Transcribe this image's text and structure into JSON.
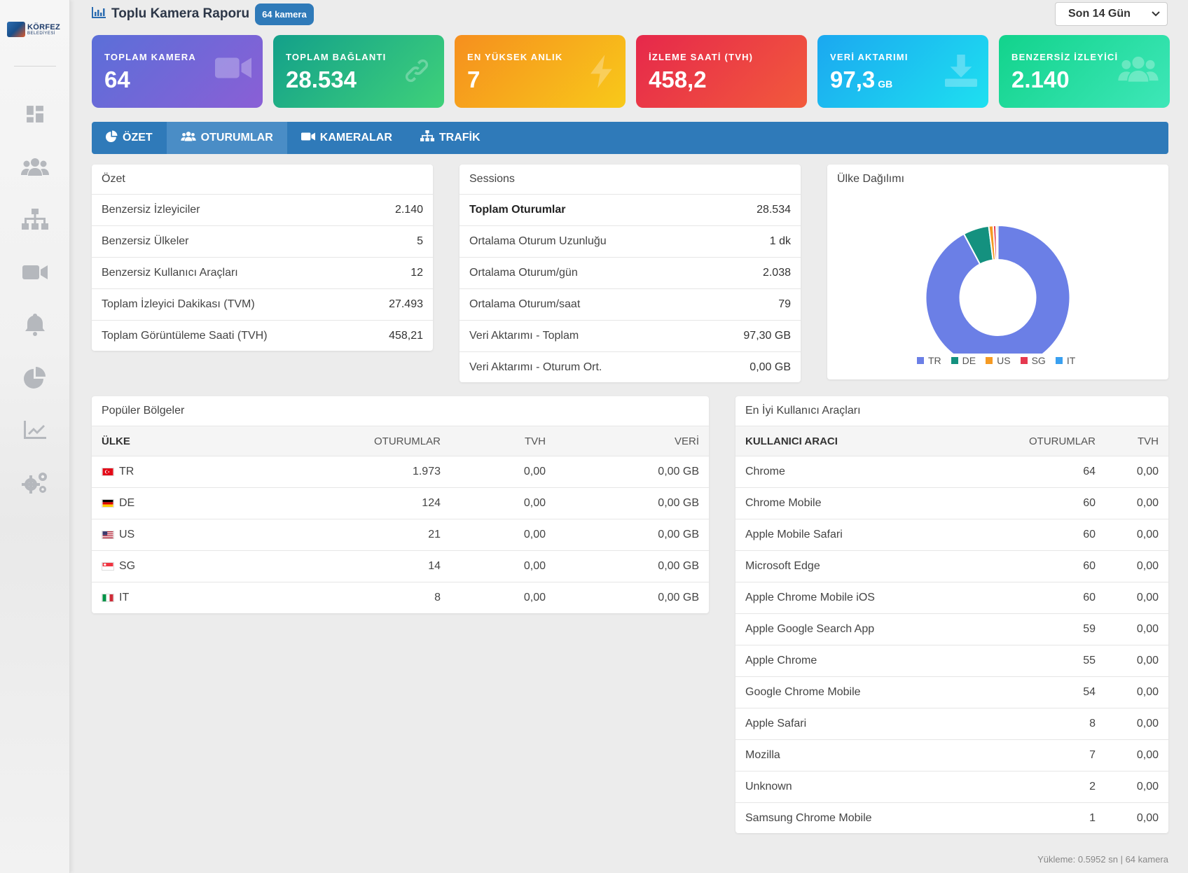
{
  "brand": {
    "name_line1": "KÖRFEZ",
    "name_line2": "BELEDİYESİ"
  },
  "sidebar": {
    "icons": [
      "dashboard-icon",
      "users-icon",
      "sitemap-icon",
      "video-icon",
      "bell-icon",
      "pie-chart-icon",
      "chart-line-icon",
      "cogs-icon"
    ]
  },
  "header": {
    "title": "Toplu Kamera Raporu",
    "badge": "64 kamera",
    "range": "Son 14 Gün"
  },
  "kpis": [
    {
      "label": "TOPLAM KAMERA",
      "value": "64",
      "unit": "",
      "icon": "video-icon",
      "gradient_from": "#5b6fd8",
      "gradient_to": "#8a5fd6"
    },
    {
      "label": "TOPLAM BAĞLANTI",
      "value": "28.534",
      "unit": "",
      "icon": "link-icon",
      "gradient_from": "#13a08a",
      "gradient_to": "#3fd17a"
    },
    {
      "label": "EN YÜKSEK ANLIK",
      "value": "7",
      "unit": "",
      "icon": "bolt-icon",
      "gradient_from": "#f68f1e",
      "gradient_to": "#f8c91a"
    },
    {
      "label": "İZLEME SAATİ (TVH)",
      "value": "458,2",
      "unit": "",
      "icon": "clock-icon",
      "gradient_from": "#e6284b",
      "gradient_to": "#f25a3c"
    },
    {
      "label": "VERİ AKTARIMI",
      "value": "97,3",
      "unit": "GB",
      "icon": "download-icon",
      "gradient_from": "#1ba8f0",
      "gradient_to": "#1ee0f0"
    },
    {
      "label": "BENZERSİZ İZLEYİCİ",
      "value": "2.140",
      "unit": "",
      "icon": "users-icon",
      "gradient_from": "#12d38c",
      "gradient_to": "#3ee7b8"
    }
  ],
  "tabs": [
    {
      "label": "ÖZET",
      "icon": "pie-chart-icon",
      "active": false
    },
    {
      "label": "OTURUMLAR",
      "icon": "users-icon",
      "active": true
    },
    {
      "label": "KAMERALAR",
      "icon": "video-icon",
      "active": false
    },
    {
      "label": "TRAFİK",
      "icon": "sitemap-icon",
      "active": false
    }
  ],
  "summary": {
    "title": "Özet",
    "rows": [
      {
        "k": "Benzersiz İzleyiciler",
        "v": "2.140"
      },
      {
        "k": "Benzersiz Ülkeler",
        "v": "5"
      },
      {
        "k": "Benzersiz Kullanıcı Araçları",
        "v": "12"
      },
      {
        "k": "Toplam İzleyici Dakikası (TVM)",
        "v": "27.493"
      },
      {
        "k": "Toplam Görüntüleme Saati (TVH)",
        "v": "458,21"
      }
    ]
  },
  "sessions": {
    "title": "Sessions",
    "rows": [
      {
        "k": "Toplam Oturumlar",
        "v": "28.534",
        "bold": true
      },
      {
        "k": "Ortalama Oturum Uzunluğu",
        "v": "1 dk"
      },
      {
        "k": "Ortalama Oturum/gün",
        "v": "2.038"
      },
      {
        "k": "Ortalama Oturum/saat",
        "v": "79"
      },
      {
        "k": "Veri Aktarımı - Toplam",
        "v": "97,30 GB"
      },
      {
        "k": "Veri Aktarımı - Oturum Ort.",
        "v": "0,00 GB"
      }
    ]
  },
  "country_chart": {
    "title": "Ülke Dağılımı",
    "chart_data": {
      "type": "pie",
      "categories": [
        "TR",
        "DE",
        "US",
        "SG",
        "IT"
      ],
      "values": [
        1973,
        124,
        21,
        14,
        8
      ],
      "colors": [
        "#6b7fe6",
        "#14917f",
        "#f59a23",
        "#e53950",
        "#3aa0f0"
      ],
      "legend_position": "bottom"
    }
  },
  "regions": {
    "title": "Popüler Bölgeler",
    "headers": [
      "ÜLKE",
      "OTURUMLAR",
      "TVH",
      "VERİ"
    ],
    "rows": [
      {
        "country": "TR",
        "sessions": "1.973",
        "tvh": "0,00",
        "data": "0,00 GB"
      },
      {
        "country": "DE",
        "sessions": "124",
        "tvh": "0,00",
        "data": "0,00 GB"
      },
      {
        "country": "US",
        "sessions": "21",
        "tvh": "0,00",
        "data": "0,00 GB"
      },
      {
        "country": "SG",
        "sessions": "14",
        "tvh": "0,00",
        "data": "0,00 GB"
      },
      {
        "country": "IT",
        "sessions": "8",
        "tvh": "0,00",
        "data": "0,00 GB"
      }
    ]
  },
  "agents": {
    "title": "En İyi Kullanıcı Araçları",
    "headers": [
      "KULLANICI ARACI",
      "OTURUMLAR",
      "TVH"
    ],
    "rows": [
      {
        "name": "Chrome",
        "sessions": "64",
        "tvh": "0,00"
      },
      {
        "name": "Chrome Mobile",
        "sessions": "60",
        "tvh": "0,00"
      },
      {
        "name": "Apple Mobile Safari",
        "sessions": "60",
        "tvh": "0,00"
      },
      {
        "name": "Microsoft Edge",
        "sessions": "60",
        "tvh": "0,00"
      },
      {
        "name": "Apple Chrome Mobile iOS",
        "sessions": "60",
        "tvh": "0,00"
      },
      {
        "name": "Apple Google Search App",
        "sessions": "59",
        "tvh": "0,00"
      },
      {
        "name": "Apple Chrome",
        "sessions": "55",
        "tvh": "0,00"
      },
      {
        "name": "Google Chrome Mobile",
        "sessions": "54",
        "tvh": "0,00"
      },
      {
        "name": "Apple Safari",
        "sessions": "8",
        "tvh": "0,00"
      },
      {
        "name": "Mozilla",
        "sessions": "7",
        "tvh": "0,00"
      },
      {
        "name": "Unknown",
        "sessions": "2",
        "tvh": "0,00"
      },
      {
        "name": "Samsung Chrome Mobile",
        "sessions": "1",
        "tvh": "0,00"
      }
    ]
  },
  "footer": {
    "note": "Yükleme: 0.5952 sn | 64 kamera"
  }
}
